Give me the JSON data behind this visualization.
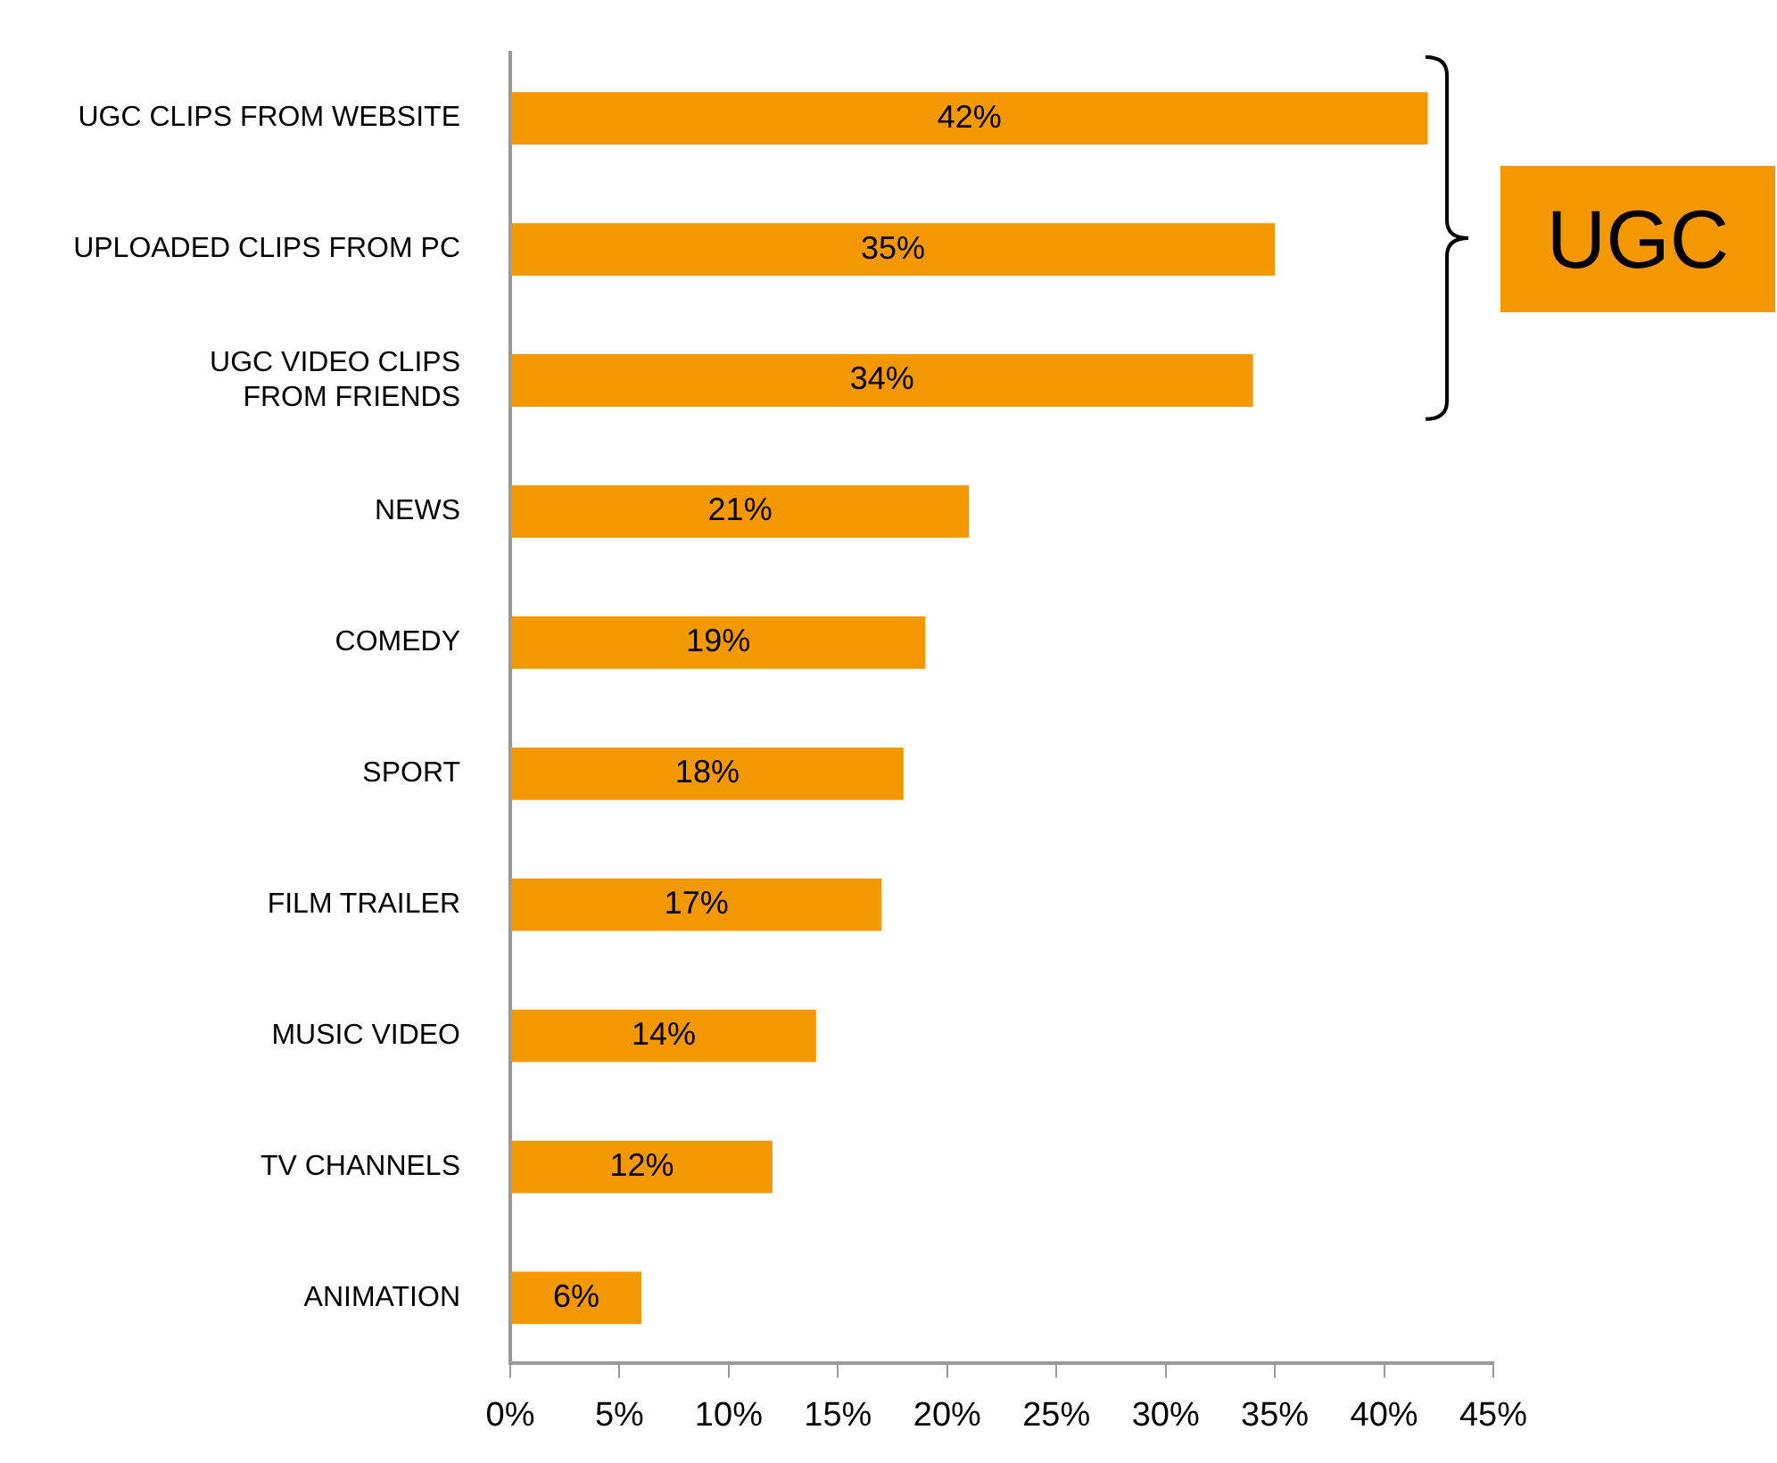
{
  "chart_data": {
    "type": "bar",
    "orientation": "horizontal",
    "categories": [
      "UGC CLIPS FROM WEBSITE",
      "UPLOADED CLIPS FROM PC",
      "UGC VIDEO CLIPS FROM FRIENDS",
      "NEWS",
      "COMEDY",
      "SPORT",
      "FILM TRAILER",
      "MUSIC VIDEO",
      "TV CHANNELS",
      "ANIMATION"
    ],
    "values": [
      42,
      35,
      34,
      21,
      19,
      18,
      17,
      14,
      12,
      6
    ],
    "value_labels": [
      "42%",
      "35%",
      "34%",
      "21%",
      "19%",
      "18%",
      "17%",
      "14%",
      "12%",
      "6%"
    ],
    "color": "#f39800",
    "xlim": [
      0,
      45
    ],
    "xticks": [
      {
        "value": 0,
        "label": "0%"
      },
      {
        "value": 5,
        "label": "5%"
      },
      {
        "value": 10,
        "label": "10%"
      },
      {
        "value": 15,
        "label": "15%"
      },
      {
        "value": 20,
        "label": "20%"
      },
      {
        "value": 25,
        "label": "25%"
      },
      {
        "value": 30,
        "label": "30%"
      },
      {
        "value": 35,
        "label": "35%"
      },
      {
        "value": 40,
        "label": "40%"
      },
      {
        "value": 45,
        "label": "45%"
      }
    ],
    "annotations": [
      "UGC"
    ],
    "grid": false,
    "legend": false
  }
}
